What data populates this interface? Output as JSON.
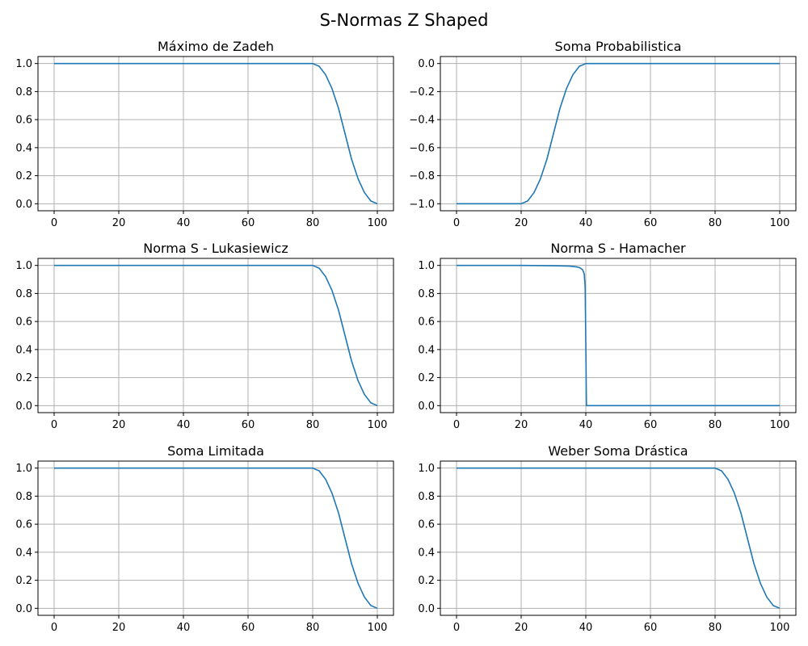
{
  "figure": {
    "suptitle": "S-Normas Z Shaped",
    "line_color": "#1f77b4",
    "grid_color": "#b0b0b0"
  },
  "chart_data": [
    {
      "type": "line",
      "title": "Máximo de Zadeh",
      "xlabel": "",
      "ylabel": "",
      "xlim": [
        -5,
        105
      ],
      "ylim": [
        -0.05,
        1.05
      ],
      "xticks": [
        0,
        20,
        40,
        60,
        80,
        100
      ],
      "yticks": [
        0.0,
        0.2,
        0.4,
        0.6,
        0.8,
        1.0
      ],
      "xtick_labels": [
        "0",
        "20",
        "40",
        "60",
        "80",
        "100"
      ],
      "ytick_labels": [
        "0.0",
        "0.2",
        "0.4",
        "0.6",
        "0.8",
        "1.0"
      ],
      "grid": true,
      "series": [
        {
          "x": [
            0,
            20,
            40,
            60,
            80,
            82,
            84,
            86,
            88,
            90,
            92,
            94,
            96,
            98,
            100
          ],
          "y": [
            1,
            1,
            1,
            1,
            1,
            0.98,
            0.92,
            0.82,
            0.68,
            0.5,
            0.32,
            0.18,
            0.08,
            0.02,
            0
          ]
        }
      ]
    },
    {
      "type": "line",
      "title": "Soma Probabilistica",
      "xlabel": "",
      "ylabel": "",
      "xlim": [
        -5,
        105
      ],
      "ylim": [
        -1.05,
        0.05
      ],
      "xticks": [
        0,
        20,
        40,
        60,
        80,
        100
      ],
      "yticks": [
        -1.0,
        -0.8,
        -0.6,
        -0.4,
        -0.2,
        0.0
      ],
      "xtick_labels": [
        "0",
        "20",
        "40",
        "60",
        "80",
        "100"
      ],
      "ytick_labels": [
        "−1.0",
        "−0.8",
        "−0.6",
        "−0.4",
        "−0.2",
        "0.0"
      ],
      "grid": true,
      "series": [
        {
          "x": [
            0,
            20,
            22,
            24,
            26,
            28,
            30,
            32,
            34,
            36,
            38,
            40,
            60,
            80,
            100
          ],
          "y": [
            -1,
            -1,
            -0.98,
            -0.92,
            -0.82,
            -0.68,
            -0.5,
            -0.32,
            -0.18,
            -0.08,
            -0.02,
            0,
            0,
            0,
            0
          ]
        }
      ]
    },
    {
      "type": "line",
      "title": "Norma S - Lukasiewicz",
      "xlabel": "",
      "ylabel": "",
      "xlim": [
        -5,
        105
      ],
      "ylim": [
        -0.05,
        1.05
      ],
      "xticks": [
        0,
        20,
        40,
        60,
        80,
        100
      ],
      "yticks": [
        0.0,
        0.2,
        0.4,
        0.6,
        0.8,
        1.0
      ],
      "xtick_labels": [
        "0",
        "20",
        "40",
        "60",
        "80",
        "100"
      ],
      "ytick_labels": [
        "0.0",
        "0.2",
        "0.4",
        "0.6",
        "0.8",
        "1.0"
      ],
      "grid": true,
      "series": [
        {
          "x": [
            0,
            20,
            40,
            60,
            80,
            82,
            84,
            86,
            88,
            90,
            92,
            94,
            96,
            98,
            100
          ],
          "y": [
            1,
            1,
            1,
            1,
            1,
            0.98,
            0.92,
            0.82,
            0.68,
            0.5,
            0.32,
            0.18,
            0.08,
            0.02,
            0
          ]
        }
      ]
    },
    {
      "type": "line",
      "title": "Norma S - Hamacher",
      "xlabel": "",
      "ylabel": "",
      "xlim": [
        -5,
        105
      ],
      "ylim": [
        -0.05,
        1.05
      ],
      "xticks": [
        0,
        20,
        40,
        60,
        80,
        100
      ],
      "yticks": [
        0.0,
        0.2,
        0.4,
        0.6,
        0.8,
        1.0
      ],
      "xtick_labels": [
        "0",
        "20",
        "40",
        "60",
        "80",
        "100"
      ],
      "ytick_labels": [
        "0.0",
        "0.2",
        "0.4",
        "0.6",
        "0.8",
        "1.0"
      ],
      "grid": true,
      "series": [
        {
          "x": [
            0,
            20,
            30,
            35,
            37,
            38,
            39,
            39.5,
            39.8,
            40,
            40.2,
            60,
            80,
            100
          ],
          "y": [
            1,
            1,
            0.998,
            0.995,
            0.99,
            0.985,
            0.97,
            0.94,
            0.85,
            0.45,
            0,
            0,
            0,
            0
          ]
        }
      ]
    },
    {
      "type": "line",
      "title": "Soma Limitada",
      "xlabel": "",
      "ylabel": "",
      "xlim": [
        -5,
        105
      ],
      "ylim": [
        -0.05,
        1.05
      ],
      "xticks": [
        0,
        20,
        40,
        60,
        80,
        100
      ],
      "yticks": [
        0.0,
        0.2,
        0.4,
        0.6,
        0.8,
        1.0
      ],
      "xtick_labels": [
        "0",
        "20",
        "40",
        "60",
        "80",
        "100"
      ],
      "ytick_labels": [
        "0.0",
        "0.2",
        "0.4",
        "0.6",
        "0.8",
        "1.0"
      ],
      "grid": true,
      "series": [
        {
          "x": [
            0,
            20,
            40,
            60,
            80,
            82,
            84,
            86,
            88,
            90,
            92,
            94,
            96,
            98,
            100
          ],
          "y": [
            1,
            1,
            1,
            1,
            1,
            0.98,
            0.92,
            0.82,
            0.68,
            0.5,
            0.32,
            0.18,
            0.08,
            0.02,
            0
          ]
        }
      ]
    },
    {
      "type": "line",
      "title": "Weber Soma Drástica",
      "xlabel": "",
      "ylabel": "",
      "xlim": [
        -5,
        105
      ],
      "ylim": [
        -0.05,
        1.05
      ],
      "xticks": [
        0,
        20,
        40,
        60,
        80,
        100
      ],
      "yticks": [
        0.0,
        0.2,
        0.4,
        0.6,
        0.8,
        1.0
      ],
      "xtick_labels": [
        "0",
        "20",
        "40",
        "60",
        "80",
        "100"
      ],
      "ytick_labels": [
        "0.0",
        "0.2",
        "0.4",
        "0.6",
        "0.8",
        "1.0"
      ],
      "grid": true,
      "series": [
        {
          "x": [
            0,
            20,
            40,
            60,
            80,
            82,
            84,
            86,
            88,
            90,
            92,
            94,
            96,
            98,
            100
          ],
          "y": [
            1,
            1,
            1,
            1,
            1,
            0.98,
            0.92,
            0.82,
            0.68,
            0.5,
            0.32,
            0.18,
            0.08,
            0.02,
            0
          ]
        }
      ]
    }
  ]
}
